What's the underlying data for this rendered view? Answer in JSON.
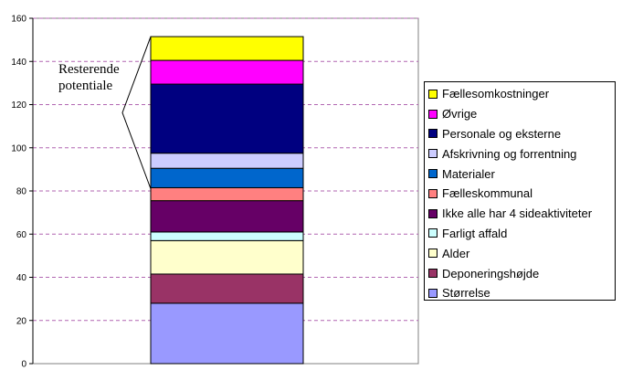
{
  "chart_data": {
    "type": "bar",
    "stacked": true,
    "categories": [
      ""
    ],
    "ylim": [
      0,
      160
    ],
    "yticks": [
      "0",
      "20",
      "40",
      "60",
      "80",
      "100",
      "120",
      "140",
      "160"
    ],
    "grid": true,
    "legend_position": "right",
    "series": [
      {
        "name": "Størrelse",
        "values": [
          28
        ],
        "color": "#9999ff"
      },
      {
        "name": "Deponeringshøjde",
        "values": [
          13.5
        ],
        "color": "#993366"
      },
      {
        "name": "Alder",
        "values": [
          15.5
        ],
        "color": "#ffffcc"
      },
      {
        "name": "Farligt affald",
        "values": [
          4
        ],
        "color": "#ccffff"
      },
      {
        "name": "Ikke alle har 4 sideaktiviteter",
        "values": [
          14.5
        ],
        "color": "#660066"
      },
      {
        "name": "Fælleskommunal",
        "values": [
          6
        ],
        "color": "#ff8080"
      },
      {
        "name": "Materialer",
        "values": [
          9
        ],
        "color": "#0066cc"
      },
      {
        "name": "Afskrivning og forrentning",
        "values": [
          7
        ],
        "color": "#ccccff"
      },
      {
        "name": "Personale og eksterne",
        "values": [
          32
        ],
        "color": "#000080"
      },
      {
        "name": "Øvrige",
        "values": [
          11
        ],
        "color": "#ff00ff"
      },
      {
        "name": "Fællesomkostninger",
        "values": [
          11
        ],
        "color": "#ffff00"
      }
    ],
    "annotation": {
      "lines": [
        "Resterende",
        "potentiale"
      ],
      "range_from": 81,
      "range_to": 151.5
    },
    "legend_order": [
      "Fællesomkostninger",
      "Øvrige",
      "Personale og eksterne",
      "Afskrivning og forrentning",
      "Materialer",
      "Fælleskommunal",
      "Ikke alle har 4 sideaktiviteter",
      "Farligt affald",
      "Alder",
      "Deponeringshøjde",
      "Størrelse"
    ]
  }
}
